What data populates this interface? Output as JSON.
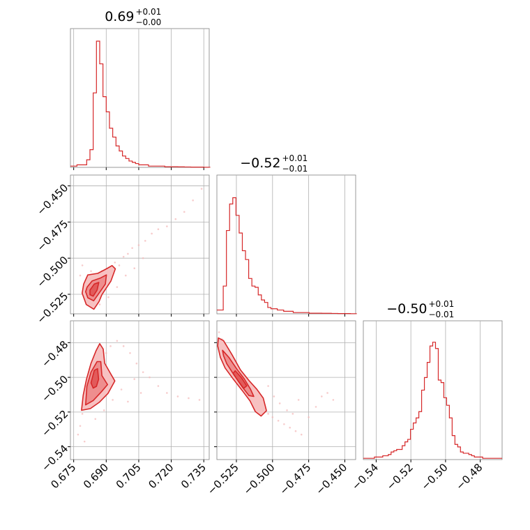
{
  "chart_data": {
    "type": "corner",
    "color": "#d62728",
    "grid": true,
    "parameters": [
      {
        "title": {
          "median": "0.69",
          "plus": "+0.01",
          "minus": "−0.00"
        },
        "range": [
          0.6735,
          0.7375
        ],
        "ticks": [
          {
            "value": 0.675,
            "label": "0.675"
          },
          {
            "value": 0.69,
            "label": "0.690"
          },
          {
            "value": 0.705,
            "label": "0.705"
          },
          {
            "value": 0.72,
            "label": "0.720"
          },
          {
            "value": 0.735,
            "label": "0.735"
          }
        ],
        "histogram": {
          "start": 0.6735,
          "bin_width": 0.0015,
          "counts": [
            0.01,
            0.01,
            0.02,
            0.02,
            0.02,
            0.06,
            0.14,
            0.59,
            1.0,
            0.82,
            0.56,
            0.44,
            0.31,
            0.24,
            0.17,
            0.13,
            0.09,
            0.07,
            0.05,
            0.04,
            0.03,
            0.02,
            0.02,
            0.02,
            0.01,
            0.01,
            0.01,
            0.01,
            0.01,
            0.005,
            0.005,
            0.005,
            0.005,
            0.004,
            0.004,
            0.003,
            0.003,
            0.002,
            0.002,
            0.002,
            0.002,
            0.001,
            0.001
          ]
        }
      },
      {
        "title": {
          "median": "−0.52",
          "plus": "+0.01",
          "minus": "−0.01"
        },
        "range": [
          -0.5385,
          -0.4425
        ],
        "ticks": [
          {
            "value": -0.525,
            "label": "−0.525"
          },
          {
            "value": -0.5,
            "label": "−0.500"
          },
          {
            "value": -0.475,
            "label": "−0.475"
          },
          {
            "value": -0.45,
            "label": "−0.450"
          }
        ],
        "histogram": {
          "start": -0.5385,
          "bin_width": 0.0022,
          "counts": [
            0.03,
            0.03,
            0.22,
            0.66,
            0.87,
            0.92,
            0.78,
            0.64,
            0.5,
            0.43,
            0.28,
            0.22,
            0.21,
            0.15,
            0.11,
            0.09,
            0.05,
            0.04,
            0.04,
            0.03,
            0.03,
            0.02,
            0.02,
            0.02,
            0.01,
            0.01,
            0.01,
            0.01,
            0.01,
            0.005,
            0.005,
            0.005,
            0.005,
            0.004,
            0.004,
            0.004,
            0.003,
            0.003,
            0.002,
            0.002,
            0.002,
            0.002,
            0.001,
            0.001
          ]
        }
      },
      {
        "title": {
          "median": "−0.50",
          "plus": "+0.01",
          "minus": "−0.01"
        },
        "range": [
          -0.5474,
          -0.4674
        ],
        "ticks": [
          {
            "value": -0.54,
            "label": "−0.54"
          },
          {
            "value": -0.52,
            "label": "−0.52"
          },
          {
            "value": -0.5,
            "label": "−0.50"
          },
          {
            "value": -0.48,
            "label": "−0.48"
          }
        ],
        "histogram": {
          "start": -0.5474,
          "bin_width": 0.0016,
          "counts": [
            0.01,
            0.01,
            0.01,
            0.01,
            0.02,
            0.02,
            0.02,
            0.03,
            0.03,
            0.04,
            0.06,
            0.07,
            0.08,
            0.08,
            0.11,
            0.14,
            0.16,
            0.24,
            0.29,
            0.33,
            0.38,
            0.55,
            0.65,
            0.77,
            0.9,
            0.93,
            0.88,
            0.63,
            0.61,
            0.49,
            0.43,
            0.33,
            0.19,
            0.12,
            0.1,
            0.06,
            0.05,
            0.05,
            0.04,
            0.03,
            0.02,
            0.02,
            0.02,
            0.01,
            0.01,
            0.01,
            0.01,
            0.01,
            0.01,
            0.01
          ]
        }
      }
    ],
    "pairs": [
      {
        "x_param": 0,
        "y_param": 1,
        "samples": [
          [
            0.68,
            -0.522
          ],
          [
            0.681,
            -0.526
          ],
          [
            0.682,
            -0.529
          ],
          [
            0.683,
            -0.531
          ],
          [
            0.684,
            -0.527
          ],
          [
            0.685,
            -0.519
          ],
          [
            0.686,
            -0.514
          ],
          [
            0.687,
            -0.516
          ],
          [
            0.688,
            -0.509
          ],
          [
            0.689,
            -0.522
          ],
          [
            0.69,
            -0.512
          ],
          [
            0.692,
            -0.508
          ],
          [
            0.694,
            -0.503
          ],
          [
            0.696,
            -0.505
          ],
          [
            0.698,
            -0.499
          ],
          [
            0.7,
            -0.497
          ],
          [
            0.702,
            -0.493
          ],
          [
            0.705,
            -0.491
          ],
          [
            0.708,
            -0.488
          ],
          [
            0.711,
            -0.483
          ],
          [
            0.714,
            -0.48
          ],
          [
            0.718,
            -0.478
          ],
          [
            0.722,
            -0.473
          ],
          [
            0.726,
            -0.468
          ],
          [
            0.73,
            -0.46
          ],
          [
            0.734,
            -0.452
          ],
          [
            0.678,
            -0.512
          ],
          [
            0.679,
            -0.505
          ],
          [
            0.683,
            -0.509
          ],
          [
            0.687,
            -0.532
          ],
          [
            0.691,
            -0.527
          ],
          [
            0.695,
            -0.52
          ],
          [
            0.699,
            -0.512
          ],
          [
            0.703,
            -0.507
          ],
          [
            0.707,
            -0.5
          ]
        ],
        "contours": [
          [
            [
              0.6796,
              -0.5179
            ],
            [
              0.6815,
              -0.5116
            ],
            [
              0.6861,
              -0.5105
            ],
            [
              0.6901,
              -0.5074
            ],
            [
              0.6927,
              -0.5051
            ],
            [
              0.6942,
              -0.5074
            ],
            [
              0.6922,
              -0.5158
            ],
            [
              0.688,
              -0.5253
            ],
            [
              0.6867,
              -0.53
            ],
            [
              0.6843,
              -0.5353
            ],
            [
              0.6808,
              -0.5321
            ],
            [
              0.6789,
              -0.5242
            ]
          ],
          [
            [
              0.6812,
              -0.52
            ],
            [
              0.6835,
              -0.5158
            ],
            [
              0.6874,
              -0.5137
            ],
            [
              0.6901,
              -0.5116
            ],
            [
              0.6896,
              -0.5179
            ],
            [
              0.6862,
              -0.5253
            ],
            [
              0.6842,
              -0.5295
            ],
            [
              0.6815,
              -0.5274
            ],
            [
              0.6805,
              -0.5232
            ]
          ],
          [
            [
              0.6825,
              -0.5221
            ],
            [
              0.6845,
              -0.5179
            ],
            [
              0.6866,
              -0.5168
            ],
            [
              0.6858,
              -0.5221
            ],
            [
              0.684,
              -0.5263
            ],
            [
              0.6825,
              -0.5253
            ]
          ]
        ],
        "ylim": [
          -0.5385,
          -0.4425
        ]
      },
      {
        "x_param": 0,
        "y_param": 2,
        "samples": [
          [
            0.677,
            -0.533
          ],
          [
            0.678,
            -0.528
          ],
          [
            0.679,
            -0.521
          ],
          [
            0.681,
            -0.515
          ],
          [
            0.682,
            -0.509
          ],
          [
            0.683,
            -0.503
          ],
          [
            0.684,
            -0.498
          ],
          [
            0.686,
            -0.494
          ],
          [
            0.688,
            -0.49
          ],
          [
            0.69,
            -0.486
          ],
          [
            0.692,
            -0.482
          ],
          [
            0.695,
            -0.479
          ],
          [
            0.698,
            -0.482
          ],
          [
            0.701,
            -0.486
          ],
          [
            0.704,
            -0.492
          ],
          [
            0.707,
            -0.497
          ],
          [
            0.71,
            -0.5
          ],
          [
            0.714,
            -0.505
          ],
          [
            0.718,
            -0.509
          ],
          [
            0.723,
            -0.511
          ],
          [
            0.728,
            -0.512
          ],
          [
            0.733,
            -0.513
          ],
          [
            0.68,
            -0.537
          ],
          [
            0.685,
            -0.524
          ],
          [
            0.689,
            -0.519
          ],
          [
            0.693,
            -0.513
          ],
          [
            0.697,
            -0.507
          ],
          [
            0.7,
            -0.514
          ],
          [
            0.703,
            -0.501
          ],
          [
            0.706,
            -0.509
          ]
        ],
        "contours": [
          [
            [
              0.6786,
              -0.519
            ],
            [
              0.6794,
              -0.5103
            ],
            [
              0.6809,
              -0.5011
            ],
            [
              0.683,
              -0.4919
            ],
            [
              0.6853,
              -0.4847
            ],
            [
              0.687,
              -0.4806
            ],
            [
              0.6886,
              -0.4837
            ],
            [
              0.6893,
              -0.4919
            ],
            [
              0.6921,
              -0.498
            ],
            [
              0.694,
              -0.5021
            ],
            [
              0.6908,
              -0.5093
            ],
            [
              0.6868,
              -0.5144
            ],
            [
              0.6827,
              -0.518
            ]
          ],
          [
            [
              0.6805,
              -0.5159
            ],
            [
              0.6811,
              -0.5052
            ],
            [
              0.683,
              -0.497
            ],
            [
              0.6858,
              -0.4909
            ],
            [
              0.6875,
              -0.4909
            ],
            [
              0.688,
              -0.499
            ],
            [
              0.6906,
              -0.5042
            ],
            [
              0.6878,
              -0.5083
            ],
            [
              0.684,
              -0.5134
            ]
          ],
          [
            [
              0.683,
              -0.5032
            ],
            [
              0.6845,
              -0.496
            ],
            [
              0.686,
              -0.495
            ],
            [
              0.6865,
              -0.5011
            ],
            [
              0.6855,
              -0.5052
            ],
            [
              0.684,
              -0.5062
            ]
          ]
        ],
        "ylim": [
          -0.5474,
          -0.4674
        ]
      },
      {
        "x_param": 1,
        "y_param": 2,
        "samples": [
          [
            -0.537,
            -0.474
          ],
          [
            -0.535,
            -0.478
          ],
          [
            -0.533,
            -0.482
          ],
          [
            -0.531,
            -0.486
          ],
          [
            -0.529,
            -0.49
          ],
          [
            -0.527,
            -0.494
          ],
          [
            -0.525,
            -0.497
          ],
          [
            -0.523,
            -0.5
          ],
          [
            -0.521,
            -0.502
          ],
          [
            -0.519,
            -0.505
          ],
          [
            -0.517,
            -0.507
          ],
          [
            -0.515,
            -0.509
          ],
          [
            -0.513,
            -0.511
          ],
          [
            -0.511,
            -0.513
          ],
          [
            -0.509,
            -0.515
          ],
          [
            -0.507,
            -0.517
          ],
          [
            -0.505,
            -0.519
          ],
          [
            -0.503,
            -0.521
          ],
          [
            -0.5,
            -0.523
          ],
          [
            -0.496,
            -0.525
          ],
          [
            -0.492,
            -0.527
          ],
          [
            -0.488,
            -0.529
          ],
          [
            -0.484,
            -0.531
          ],
          [
            -0.48,
            -0.533
          ],
          [
            -0.475,
            -0.523
          ],
          [
            -0.47,
            -0.517
          ],
          [
            -0.466,
            -0.511
          ],
          [
            -0.462,
            -0.509
          ],
          [
            -0.458,
            -0.513
          ],
          [
            -0.503,
            -0.505
          ],
          [
            -0.499,
            -0.511
          ],
          [
            -0.495,
            -0.515
          ],
          [
            -0.49,
            -0.519
          ],
          [
            -0.486,
            -0.521
          ],
          [
            -0.482,
            -0.513
          ]
        ],
        "contours": [
          [
            [
              -0.5375,
              -0.4773
            ],
            [
              -0.5339,
              -0.4788
            ],
            [
              -0.528,
              -0.487
            ],
            [
              -0.5222,
              -0.4957
            ],
            [
              -0.5163,
              -0.5018
            ],
            [
              -0.5108,
              -0.5069
            ],
            [
              -0.5064,
              -0.512
            ],
            [
              -0.5042,
              -0.5192
            ],
            [
              -0.5079,
              -0.5223
            ],
            [
              -0.5119,
              -0.5197
            ],
            [
              -0.5156,
              -0.5136
            ],
            [
              -0.5207,
              -0.5079
            ],
            [
              -0.5269,
              -0.5013
            ],
            [
              -0.5328,
              -0.4946
            ],
            [
              -0.5361,
              -0.4885
            ],
            [
              -0.5379,
              -0.4819
            ]
          ],
          [
            [
              -0.5346,
              -0.4844
            ],
            [
              -0.5302,
              -0.4885
            ],
            [
              -0.5247,
              -0.4952
            ],
            [
              -0.5196,
              -0.5008
            ],
            [
              -0.5152,
              -0.5069
            ],
            [
              -0.513,
              -0.511
            ],
            [
              -0.5163,
              -0.5105
            ],
            [
              -0.5211,
              -0.5054
            ],
            [
              -0.5266,
              -0.4987
            ],
            [
              -0.5317,
              -0.4921
            ],
            [
              -0.5339,
              -0.4875
            ]
          ],
          [
            [
              -0.5258,
              -0.4962
            ],
            [
              -0.5214,
              -0.5003
            ],
            [
              -0.5178,
              -0.5049
            ],
            [
              -0.52,
              -0.5064
            ],
            [
              -0.524,
              -0.5018
            ],
            [
              -0.5273,
              -0.4977
            ]
          ]
        ],
        "ylim": [
          -0.5474,
          -0.4674
        ]
      }
    ]
  }
}
